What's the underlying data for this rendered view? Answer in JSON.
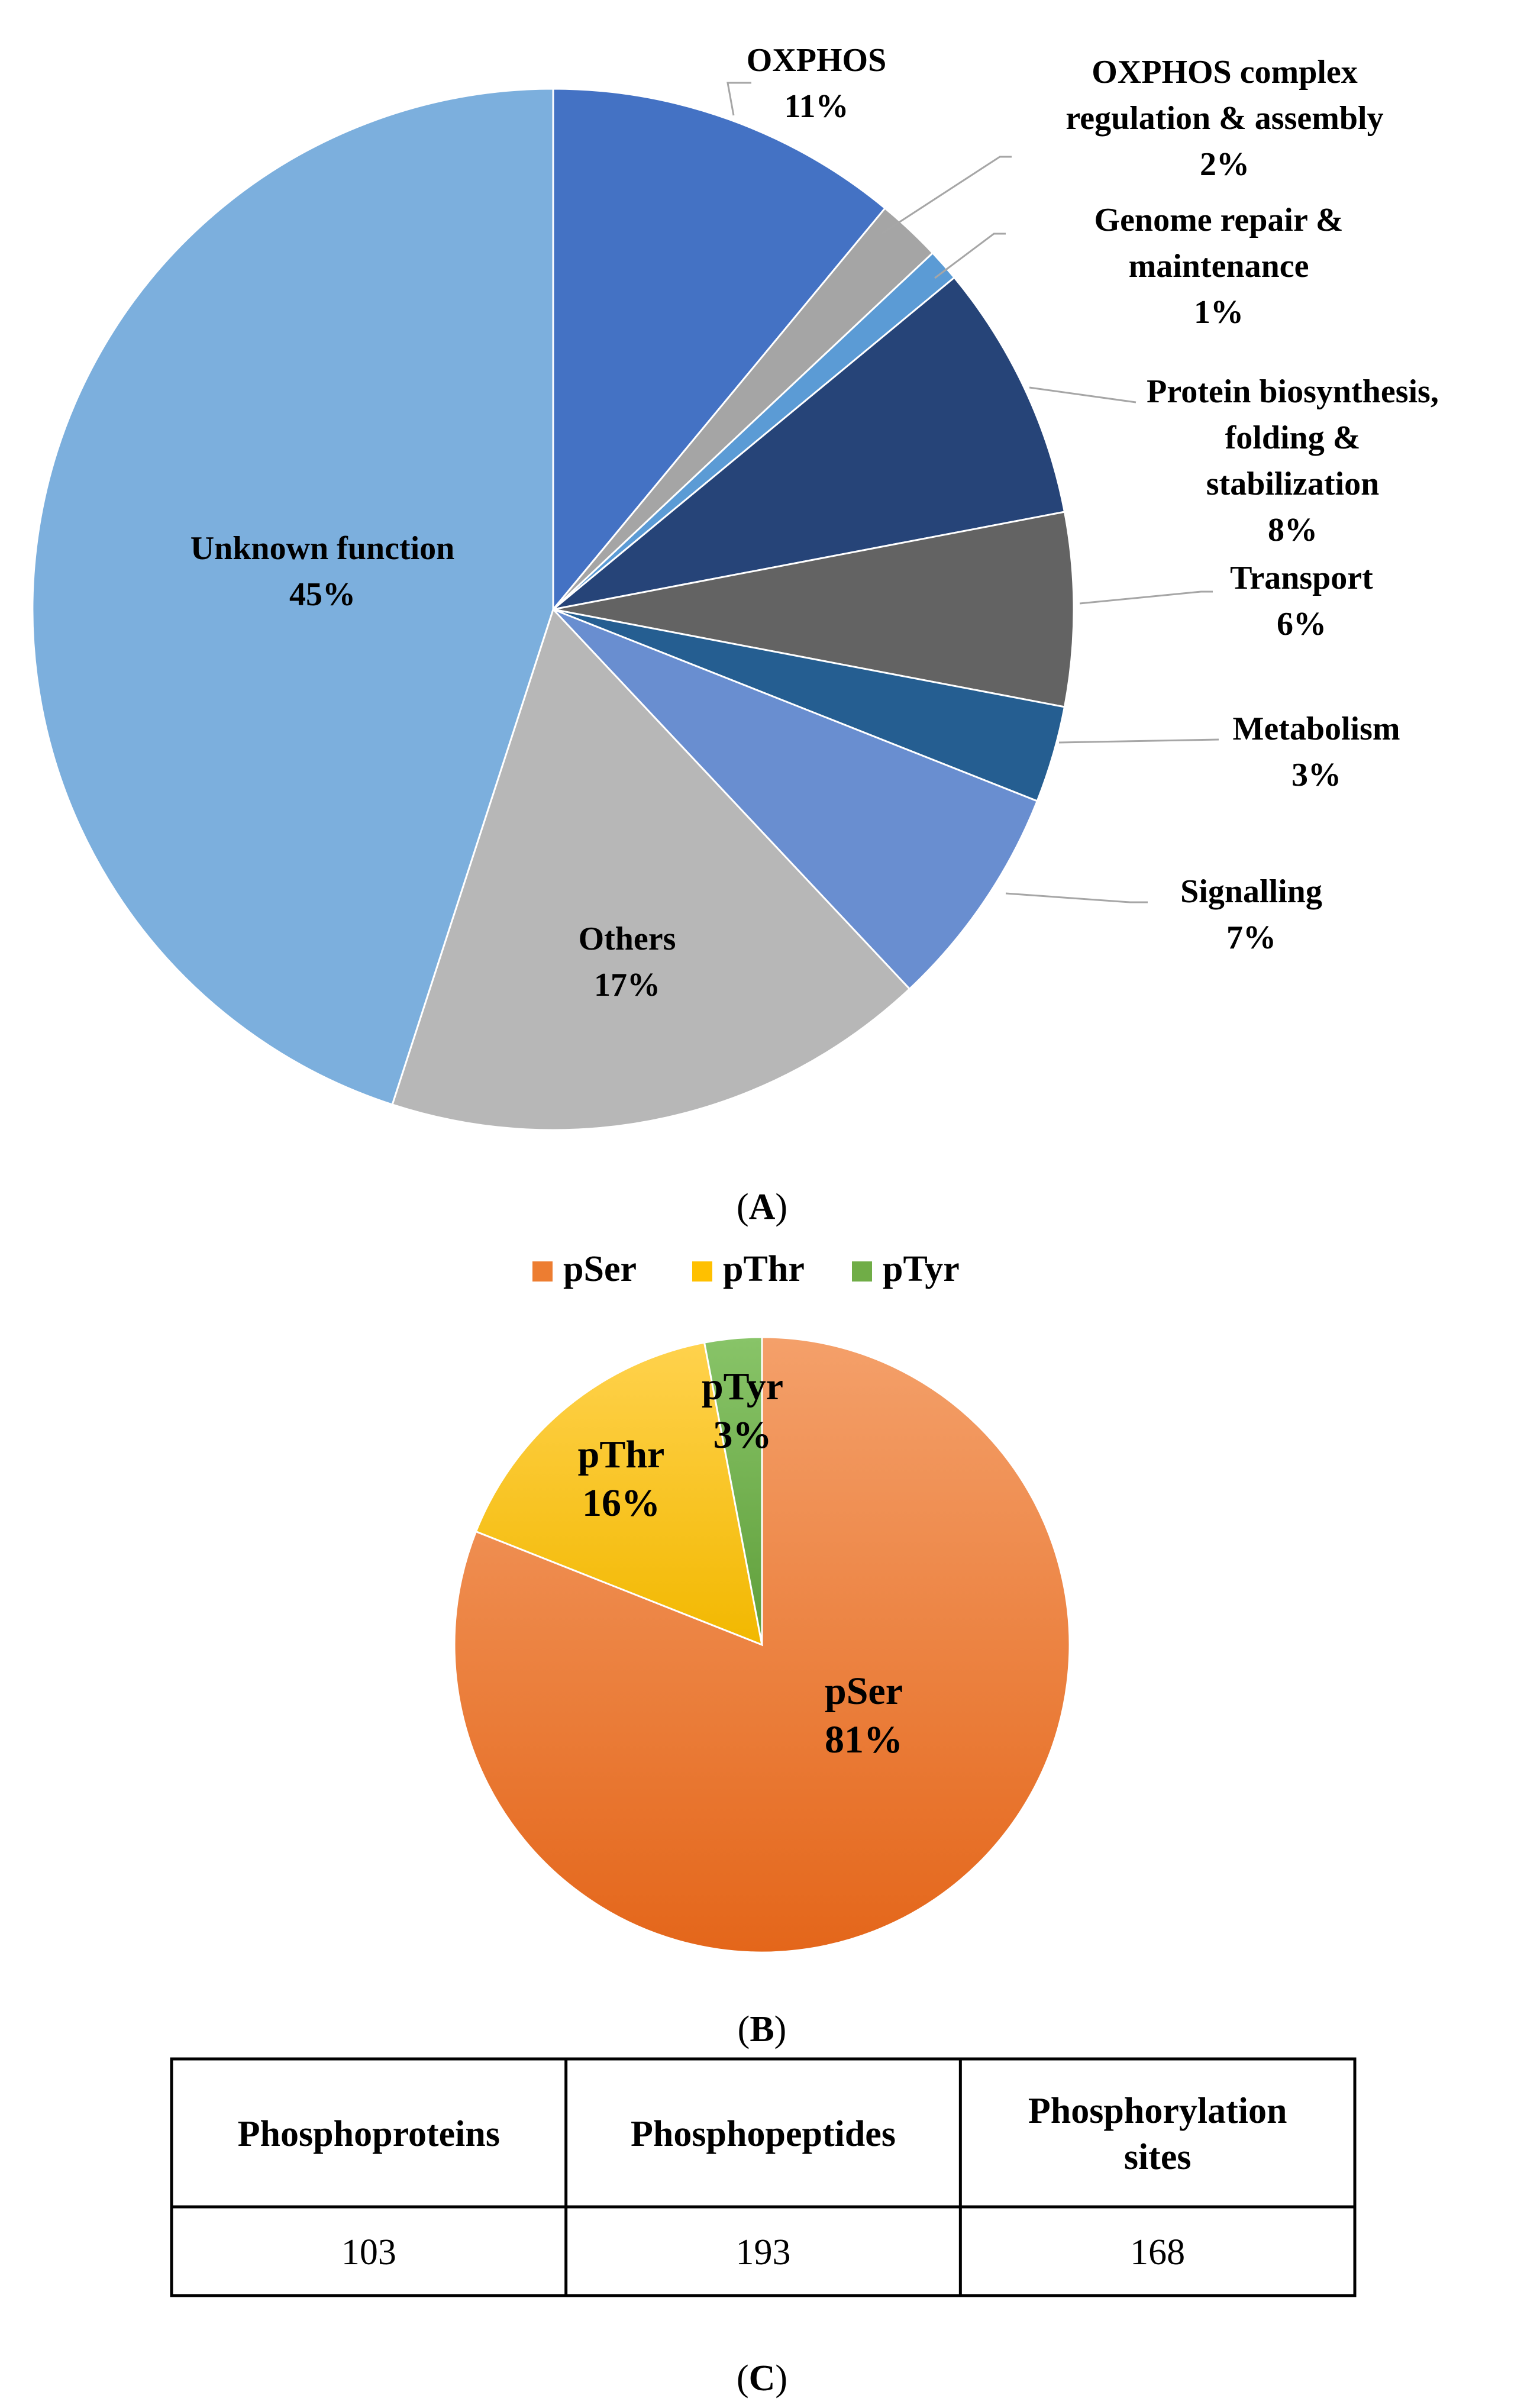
{
  "chart_data": [
    {
      "type": "pie",
      "panel": "A",
      "slices": [
        {
          "label": "OXPHOS",
          "value": 11,
          "value_text": "11%",
          "color": "#4472C4"
        },
        {
          "label": "OXPHOS complex regulation & assembly",
          "value": 2,
          "value_text": "2%",
          "color": "#A5A5A5"
        },
        {
          "label": "Genome repair & maintenance",
          "value": 1,
          "value_text": "1%",
          "color": "#5B9BD5"
        },
        {
          "label": "Protein biosynthesis, folding & stabilization",
          "value": 8,
          "value_text": "8%",
          "color": "#264478"
        },
        {
          "label": "Transport",
          "value": 6,
          "value_text": "6%",
          "color": "#636363"
        },
        {
          "label": "Metabolism",
          "value": 3,
          "value_text": "3%",
          "color": "#255E91"
        },
        {
          "label": "Signalling",
          "value": 7,
          "value_text": "7%",
          "color": "#698ED0"
        },
        {
          "label": "Others",
          "value": 17,
          "value_text": "17%",
          "color": "#B7B7B7"
        },
        {
          "label": "Unknown function",
          "value": 45,
          "value_text": "45%",
          "color": "#7CAFDD"
        }
      ],
      "label_lines": {
        "OXPHOS": [
          "OXPHOS",
          "11%"
        ],
        "OXPHOS complex regulation & assembly": [
          "OXPHOS complex",
          "regulation & assembly",
          "2%"
        ],
        "Genome repair & maintenance": [
          "Genome repair &",
          "maintenance",
          "1%"
        ],
        "Protein biosynthesis, folding & stabilization": [
          "Protein biosynthesis,",
          "folding &",
          "stabilization",
          "8%"
        ],
        "Transport": [
          "Transport",
          "6%"
        ],
        "Metabolism": [
          "Metabolism",
          "3%"
        ],
        "Signalling": [
          "Signalling",
          "7%"
        ],
        "Others": [
          "Others",
          "17%"
        ],
        "Unknown function": [
          "Unknown function",
          "45%"
        ]
      },
      "caption_letter": "A"
    },
    {
      "type": "pie",
      "panel": "B",
      "legend": [
        "pSer",
        "pThr",
        "pTyr"
      ],
      "legend_position": "top",
      "slices": [
        {
          "label": "pSer",
          "value": 81,
          "value_text": "81%",
          "color": "#ED7D31"
        },
        {
          "label": "pThr",
          "value": 16,
          "value_text": "16%",
          "color": "#FFC000"
        },
        {
          "label": "pTyr",
          "value": 3,
          "value_text": "3%",
          "color": "#70AD47"
        }
      ],
      "caption_letter": "B"
    },
    {
      "type": "table",
      "panel": "C",
      "columns": [
        "Phosphoproteins",
        "Phosphopeptides",
        "Phosphorylation sites"
      ],
      "column_lines": [
        [
          "Phosphoproteins"
        ],
        [
          "Phosphopeptides"
        ],
        [
          "Phosphorylation",
          "sites"
        ]
      ],
      "rows": [
        [
          "103",
          "193",
          "168"
        ]
      ],
      "caption_letter": "C"
    }
  ]
}
